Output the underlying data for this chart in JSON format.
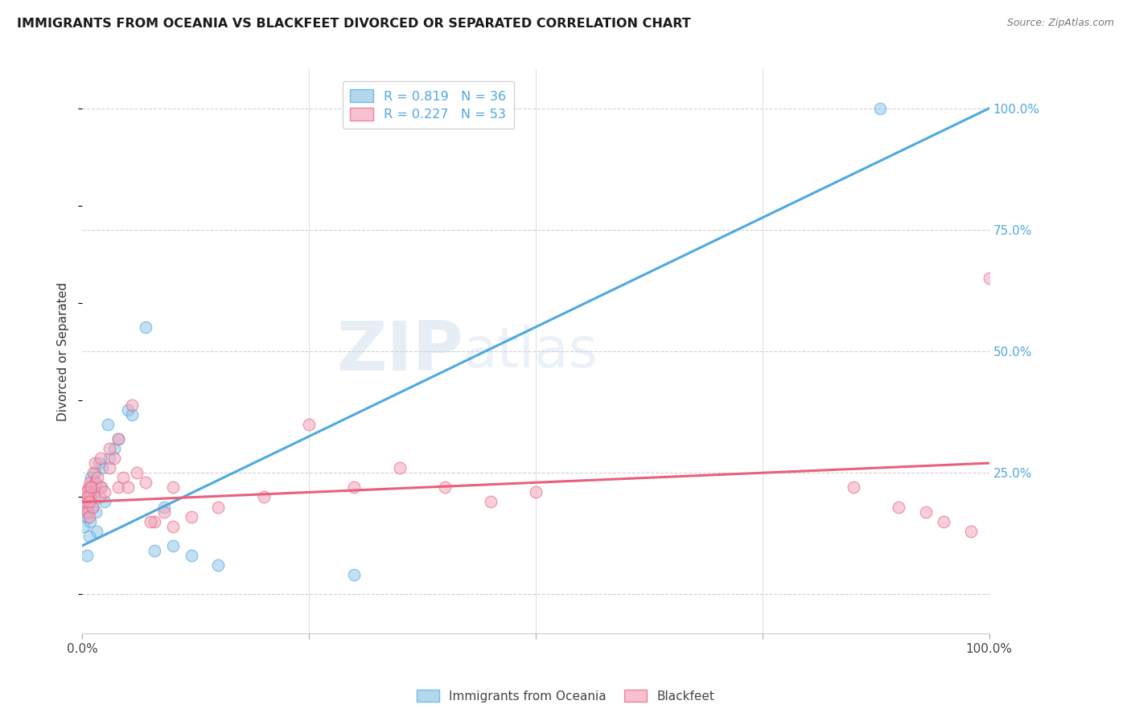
{
  "title": "IMMIGRANTS FROM OCEANIA VS BLACKFEET DIVORCED OR SEPARATED CORRELATION CHART",
  "source": "Source: ZipAtlas.com",
  "ylabel": "Divorced or Separated",
  "legend_blue_r": "R = 0.819",
  "legend_blue_n": "N = 36",
  "legend_pink_r": "R = 0.227",
  "legend_pink_n": "N = 53",
  "blue_color": "#93c6e8",
  "blue_line_color": "#4fa8e0",
  "blue_legend_color": "#4fa8e0",
  "pink_color": "#f4a7be",
  "pink_line_color": "#e8607a",
  "pink_legend_color": "#e8607a",
  "watermark_color": "#c8d8eb",
  "blue_scatter_x": [
    0.2,
    0.3,
    0.4,
    0.5,
    0.6,
    0.7,
    0.8,
    0.9,
    1.0,
    1.1,
    1.2,
    1.3,
    1.4,
    1.5,
    1.6,
    1.8,
    2.0,
    2.2,
    2.5,
    3.0,
    3.5,
    4.0,
    5.0,
    5.5,
    7.0,
    8.0,
    9.0,
    10.0,
    12.0,
    15.0,
    2.8,
    1.0,
    0.5,
    0.8,
    30.0,
    88.0
  ],
  "blue_scatter_y": [
    14,
    17,
    19,
    16,
    18,
    20,
    21,
    15,
    22,
    18,
    20,
    23,
    25,
    17,
    13,
    27,
    22,
    26,
    19,
    28,
    30,
    32,
    38,
    37,
    55,
    9,
    18,
    10,
    8,
    6,
    35,
    24,
    8,
    12,
    4,
    100
  ],
  "pink_scatter_x": [
    0.2,
    0.3,
    0.4,
    0.5,
    0.6,
    0.7,
    0.8,
    0.9,
    1.0,
    1.1,
    1.2,
    1.3,
    1.5,
    1.7,
    1.9,
    2.1,
    2.5,
    3.0,
    3.5,
    4.0,
    4.5,
    5.0,
    6.0,
    7.0,
    8.0,
    9.0,
    10.0,
    12.0,
    15.0,
    20.0,
    25.0,
    30.0,
    35.0,
    40.0,
    45.0,
    50.0,
    0.4,
    0.6,
    0.8,
    1.0,
    1.4,
    2.0,
    3.0,
    4.0,
    5.5,
    7.5,
    10.0,
    85.0,
    90.0,
    93.0,
    95.0,
    98.0,
    100.0
  ],
  "pink_scatter_y": [
    18,
    20,
    19,
    21,
    17,
    22,
    16,
    23,
    20,
    18,
    25,
    21,
    23,
    24,
    20,
    22,
    21,
    26,
    28,
    22,
    24,
    22,
    25,
    23,
    15,
    17,
    22,
    16,
    18,
    20,
    35,
    22,
    26,
    22,
    19,
    21,
    21,
    20,
    19,
    22,
    27,
    28,
    30,
    32,
    39,
    15,
    14,
    22,
    18,
    17,
    15,
    13,
    65
  ],
  "blue_reg_x0": 0,
  "blue_reg_y0": 10,
  "blue_reg_x1": 100,
  "blue_reg_y1": 100,
  "pink_reg_x0": 0,
  "pink_reg_y0": 19,
  "pink_reg_x1": 100,
  "pink_reg_y1": 27,
  "xmin": 0,
  "xmax": 100,
  "ymin": -8,
  "ymax": 108,
  "yticks": [
    0,
    25,
    50,
    75,
    100
  ],
  "ytick_labels": [
    "",
    "25.0%",
    "50.0%",
    "75.0%",
    "100.0%"
  ]
}
